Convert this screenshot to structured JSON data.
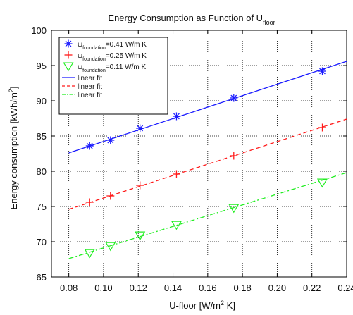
{
  "chart_data": {
    "type": "scatter",
    "title": {
      "main": "Energy Consumption as Function of U",
      "sub": "floor"
    },
    "xlabel": {
      "pre": "U-floor [W/m",
      "sup": "2",
      "post": " K]"
    },
    "ylabel": {
      "pre": "Energy consumption [kWh/m",
      "sup": "2",
      "post": "]"
    },
    "xlim": [
      0.07,
      0.24
    ],
    "ylim": [
      65,
      100
    ],
    "xticks": [
      "0.08",
      "0.10",
      "0.12",
      "0.14",
      "0.16",
      "0.18",
      "0.20",
      "0.22",
      "0.24"
    ],
    "yticks": [
      "65",
      "70",
      "75",
      "80",
      "85",
      "90",
      "95",
      "100"
    ],
    "grid": true,
    "grid_style": "dotted",
    "legend_position": "top-left",
    "series": [
      {
        "name": {
          "psi": "ψ",
          "sub": "foundation",
          "rest": "=0.41 W/m K"
        },
        "marker": "asterisk",
        "color": "#1a1aff",
        "x": [
          0.092,
          0.104,
          0.121,
          0.142,
          0.175,
          0.226
        ],
        "y": [
          83.6,
          84.4,
          86.1,
          87.8,
          90.4,
          94.2
        ]
      },
      {
        "name": {
          "psi": "ψ",
          "sub": "foundation",
          "rest": "=0.25 W/m K"
        },
        "marker": "plus",
        "color": "#ff1a1a",
        "x": [
          0.092,
          0.104,
          0.121,
          0.142,
          0.175,
          0.226
        ],
        "y": [
          75.6,
          76.5,
          78.0,
          79.6,
          82.2,
          86.2
        ]
      },
      {
        "name": {
          "psi": "ψ",
          "sub": "foundation",
          "rest": "=0.11 W/m K"
        },
        "marker": "triangle-down",
        "color": "#22ee22",
        "x": [
          0.092,
          0.104,
          0.121,
          0.142,
          0.175,
          0.226
        ],
        "y": [
          68.4,
          69.4,
          70.9,
          72.4,
          74.8,
          78.4
        ]
      }
    ],
    "fits": [
      {
        "name": "linear fit",
        "style": "solid",
        "color": "#1a1aff",
        "x": [
          0.08,
          0.24
        ],
        "y": [
          82.6,
          95.6
        ]
      },
      {
        "name": "linear fit",
        "style": "dashed",
        "color": "#ff1a1a",
        "x": [
          0.08,
          0.24
        ],
        "y": [
          74.6,
          87.4
        ]
      },
      {
        "name": "linear fit",
        "style": "dashdot",
        "color": "#22ee22",
        "x": [
          0.08,
          0.24
        ],
        "y": [
          67.6,
          79.8
        ]
      }
    ]
  }
}
